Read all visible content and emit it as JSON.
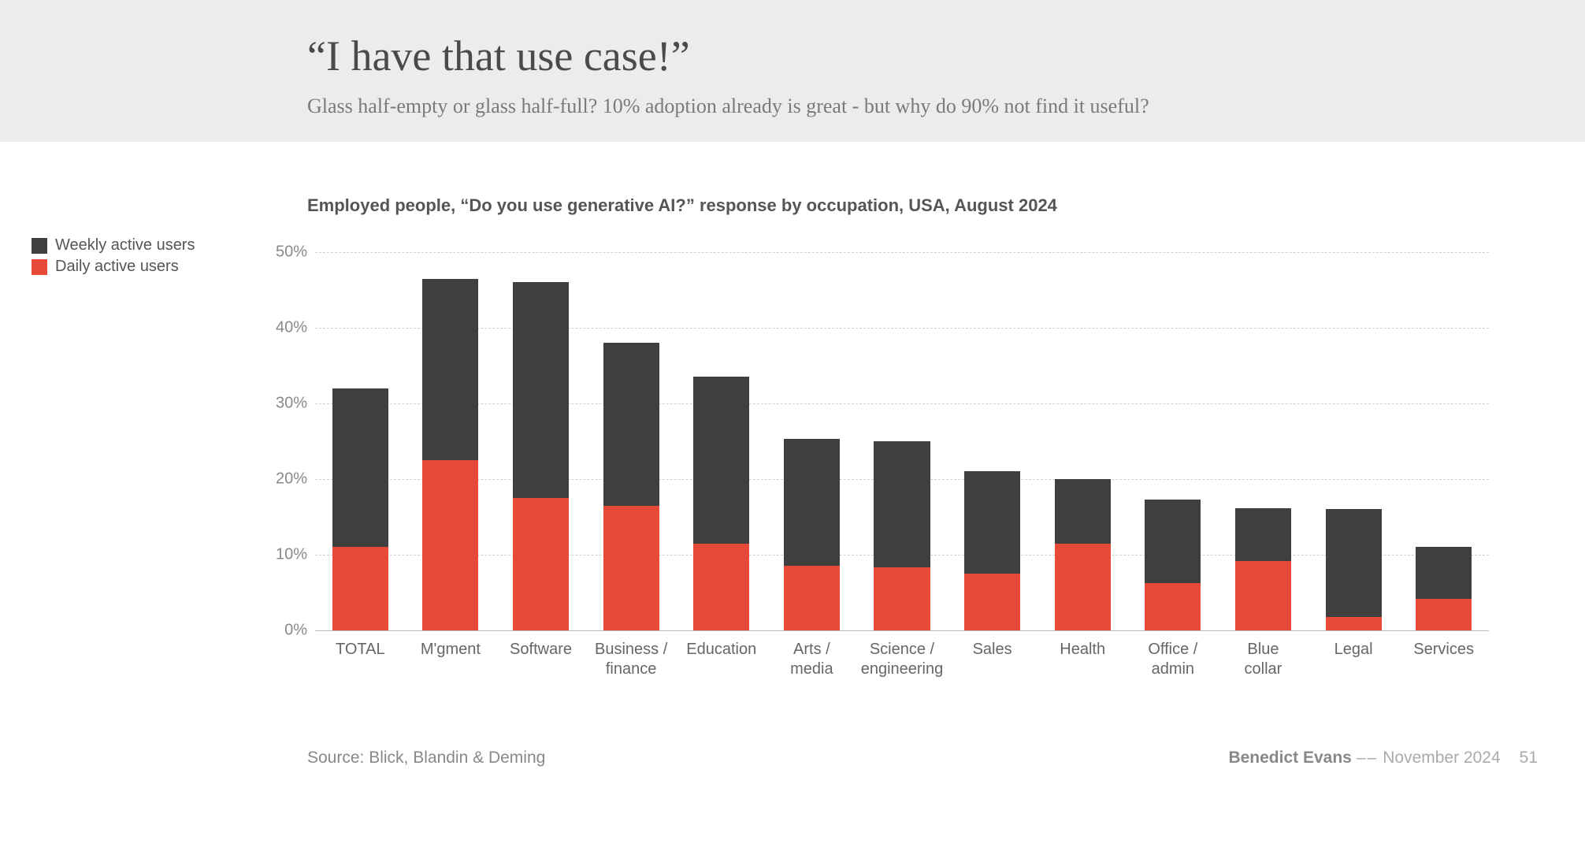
{
  "header": {
    "title": "“I have that use case!”",
    "subtitle": "Glass half-empty or glass half-full? 10% adoption already is great - but why do 90% not find it useful?",
    "bg_color": "#ececec",
    "title_color": "#4a4a4a",
    "subtitle_color": "#7a7a7a",
    "title_fontsize": 54,
    "subtitle_fontsize": 26
  },
  "legend": {
    "items": [
      {
        "label": "Weekly active users",
        "color": "#3f3f3f"
      },
      {
        "label": "Daily active users",
        "color": "#e84a3a"
      }
    ],
    "fontsize": 20,
    "text_color": "#555"
  },
  "chart": {
    "type": "stacked-bar",
    "title": "Employed people, “Do you use generative AI?” response by occupation, USA, August 2024",
    "title_fontsize": 22,
    "title_color": "#555",
    "categories": [
      "TOTAL",
      "M'gment",
      "Software",
      "Business / finance",
      "Education",
      "Arts / media",
      "Science / engineering",
      "Sales",
      "Health",
      "Office / admin",
      "Blue collar",
      "Legal",
      "Services"
    ],
    "category_multiline": [
      [
        "TOTAL"
      ],
      [
        "M'gment"
      ],
      [
        "Software"
      ],
      [
        "Business /",
        "finance"
      ],
      [
        "Education"
      ],
      [
        "Arts /",
        "media"
      ],
      [
        "Science /",
        "engineering"
      ],
      [
        "Sales"
      ],
      [
        "Health"
      ],
      [
        "Office /",
        "admin"
      ],
      [
        "Blue",
        "collar"
      ],
      [
        "Legal"
      ],
      [
        "Services"
      ]
    ],
    "series": [
      {
        "name": "Daily active users",
        "color": "#e84a3a",
        "values": [
          11.0,
          22.5,
          17.5,
          16.5,
          11.5,
          8.5,
          8.3,
          7.5,
          11.5,
          6.3,
          9.2,
          1.8,
          4.2
        ]
      },
      {
        "name": "Weekly active users",
        "color": "#3f3f3f",
        "values": [
          21.0,
          24.0,
          28.5,
          21.5,
          22.0,
          16.8,
          16.7,
          13.5,
          8.5,
          11.0,
          7.0,
          14.2,
          6.8
        ]
      }
    ],
    "ylim": [
      0,
      50
    ],
    "ytick_step": 10,
    "y_suffix": "%",
    "grid_color": "#d0d0d0",
    "axis_color": "#bdbdbd",
    "bar_width_ratio": 0.62,
    "background_color": "#ffffff",
    "xlabel_color": "#666",
    "ylabel_color": "#888",
    "label_fontsize": 20
  },
  "source": {
    "text": "Source: Blick, Blandin & Deming",
    "color": "#888",
    "fontsize": 21
  },
  "footer": {
    "author": "Benedict Evans",
    "sep": "––",
    "date": "November 2024",
    "page": "51",
    "author_color": "#888",
    "rest_color": "#aaa",
    "fontsize": 21
  }
}
